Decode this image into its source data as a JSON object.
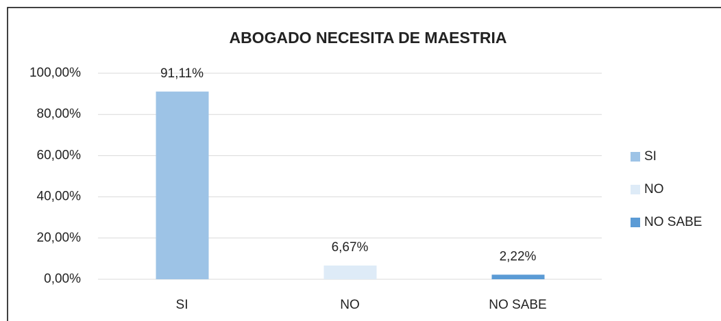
{
  "chart_data": {
    "type": "bar",
    "title": "ABOGADO NECESITA DE MAESTRIA",
    "categories": [
      "SI",
      "NO",
      "NO SABE"
    ],
    "values": [
      91.11,
      6.67,
      2.22
    ],
    "value_labels": [
      "91,11%",
      "6,67%",
      "2,22%"
    ],
    "colors": [
      "#9dc3e6",
      "#deebf7",
      "#5b9bd5"
    ],
    "ylim": [
      0,
      100
    ],
    "yticks": [
      {
        "value": 0,
        "label": "0,00%"
      },
      {
        "value": 20,
        "label": "20,00%"
      },
      {
        "value": 40,
        "label": "40,00%"
      },
      {
        "value": 60,
        "label": "60,00%"
      },
      {
        "value": 80,
        "label": "80,00%"
      },
      {
        "value": 100,
        "label": "100,00%"
      }
    ],
    "grid": true,
    "legend": "right"
  }
}
